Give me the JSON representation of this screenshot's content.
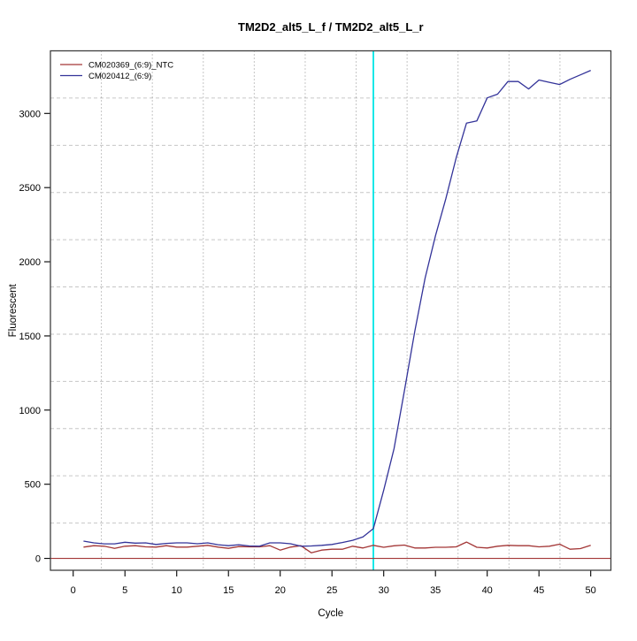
{
  "page": {
    "background": "#ffffff"
  },
  "chart_data": {
    "type": "line",
    "title": "TM2D2_alt5_L_f / TM2D2_alt5_L_r",
    "xlabel": "Cycle",
    "ylabel": "Fluorescent",
    "x_ticks": [
      0,
      5,
      10,
      15,
      20,
      25,
      30,
      35,
      40,
      45,
      50
    ],
    "y_ticks": [
      0,
      500,
      1000,
      1500,
      2000,
      2500,
      3000
    ],
    "xlim": [
      -2.2,
      51.95
    ],
    "ylim": [
      -80,
      3422
    ],
    "grid": {
      "vertical_lines": 10,
      "horizontal_lines": 10,
      "vertical_style": "dotted",
      "horizontal_style": "dashed",
      "vertical_color": "#8c8c8c",
      "horizontal_color": "#c6c6c6"
    },
    "threshold_line": {
      "cycle": 29,
      "color": "#00e5e5",
      "orientation": "vertical"
    },
    "baseline": {
      "value": 0,
      "color": "#a33636"
    },
    "legend": {
      "position": "top-left",
      "entries": [
        {
          "label": "CM020369_(6:9)_NTC",
          "color": "#a33636"
        },
        {
          "label": "CM020412_(6:9)",
          "color": "#333399"
        }
      ]
    },
    "cycles": [
      1,
      2,
      3,
      4,
      5,
      6,
      7,
      8,
      9,
      10,
      11,
      12,
      13,
      14,
      15,
      16,
      17,
      18,
      19,
      20,
      21,
      22,
      23,
      24,
      25,
      26,
      27,
      28,
      29,
      30,
      31,
      32,
      33,
      34,
      35,
      36,
      37,
      38,
      39,
      40,
      41,
      42,
      43,
      44,
      45,
      46,
      47,
      48,
      49,
      50
    ],
    "series": [
      {
        "name": "CM020369_(6:9)_NTC",
        "color": "#a33636",
        "values": [
          76,
          86,
          82,
          68,
          82,
          86,
          78,
          76,
          86,
          76,
          76,
          82,
          88,
          76,
          68,
          80,
          78,
          78,
          86,
          56,
          76,
          86,
          38,
          56,
          62,
          62,
          82,
          70,
          88,
          75,
          85,
          90,
          70,
          70,
          75,
          75,
          78,
          110,
          75,
          70,
          82,
          88,
          86,
          86,
          78,
          82,
          96,
          62,
          66,
          88
        ]
      },
      {
        "name": "CM020412_(6:9)",
        "color": "#333399",
        "values": [
          117,
          105,
          98,
          98,
          109,
          103,
          105,
          94,
          101,
          105,
          105,
          99,
          105,
          92,
          86,
          92,
          84,
          82,
          105,
          105,
          99,
          82,
          84,
          88,
          94,
          107,
          122,
          145,
          201,
          460,
          740,
          1130,
          1530,
          1890,
          2175,
          2425,
          2700,
          2935,
          2950,
          3105,
          3130,
          3215,
          3215,
          3165,
          3225,
          3210,
          3195,
          3230,
          3260,
          3290
        ]
      }
    ],
    "plot_box_color": "#3f3f3f"
  }
}
